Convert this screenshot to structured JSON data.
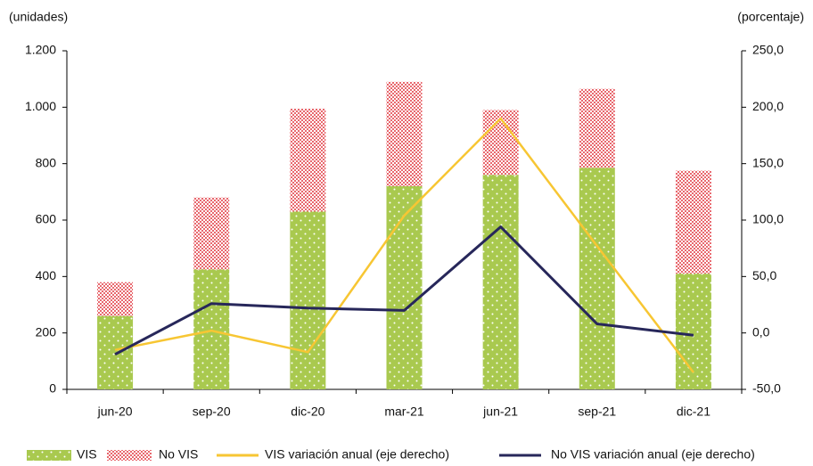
{
  "chart_data": {
    "type": "bar",
    "y_label": "(unidades)",
    "y2_label": "(porcentaje)",
    "categories": [
      "jun-20",
      "sep-20",
      "dic-20",
      "mar-21",
      "jun-21",
      "sep-21",
      "dic-21"
    ],
    "series": [
      {
        "name": "VIS",
        "color": "#a9c94f",
        "type": "bar",
        "values": [
          260,
          425,
          630,
          720,
          760,
          785,
          410
        ]
      },
      {
        "name": "No VIS",
        "color": "#e8686e",
        "type": "bar",
        "values": [
          120,
          255,
          365,
          370,
          230,
          280,
          365
        ]
      },
      {
        "name": "VIS variación anual (eje derecho)",
        "color": "#f7c633",
        "type": "line",
        "axis": "y2",
        "values": [
          -15,
          2,
          -17,
          104,
          190,
          77,
          -35
        ]
      },
      {
        "name": "No VIS variación anual (eje derecho)",
        "color": "#27275a",
        "type": "line",
        "axis": "y2",
        "values": [
          -19,
          26,
          22,
          20,
          94,
          8,
          -2
        ]
      }
    ],
    "stacked": true,
    "ylim": [
      0,
      1200
    ],
    "yticks": [
      0,
      200,
      400,
      600,
      800,
      {
        "value": 1000,
        "label": "1.000"
      },
      {
        "value": 1200,
        "label": "1.200"
      }
    ],
    "y2lim": [
      -50,
      250
    ],
    "y2ticks": [
      {
        "value": -50,
        "label": "-50,0"
      },
      {
        "value": 0,
        "label": "0,0"
      },
      {
        "value": 50,
        "label": "50,0"
      },
      {
        "value": 100,
        "label": "100,0"
      },
      {
        "value": 150,
        "label": "150,0"
      },
      {
        "value": 200,
        "label": "200,0"
      },
      {
        "value": 250,
        "label": "250,0"
      }
    ],
    "legend": "bottom"
  }
}
